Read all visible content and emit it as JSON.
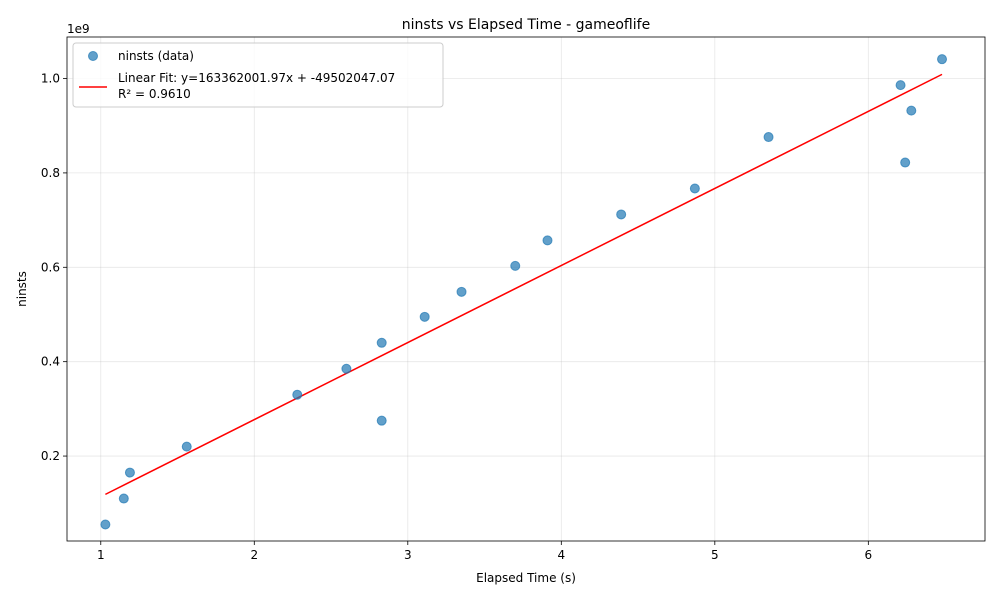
{
  "chart_data": {
    "type": "scatter",
    "title": "ninsts vs Elapsed Time - gameoflife",
    "xlabel": "Elapsed Time (s)",
    "ylabel": "ninsts",
    "y_offset_label": "1e9",
    "xlim": [
      0.78,
      6.76
    ],
    "ylim": [
      0.02,
      1.088
    ],
    "x_ticks": [
      1,
      2,
      3,
      4,
      5,
      6
    ],
    "x_tick_labels": [
      "1",
      "2",
      "3",
      "4",
      "5",
      "6"
    ],
    "y_ticks": [
      0.2,
      0.4,
      0.6,
      0.8,
      1.0
    ],
    "y_tick_labels": [
      "0.2",
      "0.4",
      "0.6",
      "0.8",
      "1.0"
    ],
    "grid": true,
    "legend_position": "top-left",
    "series": [
      {
        "name": "ninsts (data)",
        "kind": "scatter",
        "color": "#1f77b4",
        "points": [
          {
            "x": 1.03,
            "y": 0.055
          },
          {
            "x": 1.15,
            "y": 0.11
          },
          {
            "x": 1.19,
            "y": 0.165
          },
          {
            "x": 1.56,
            "y": 0.22
          },
          {
            "x": 2.28,
            "y": 0.33
          },
          {
            "x": 2.6,
            "y": 0.385
          },
          {
            "x": 2.83,
            "y": 0.44
          },
          {
            "x": 2.83,
            "y": 0.275
          },
          {
            "x": 3.11,
            "y": 0.495
          },
          {
            "x": 3.35,
            "y": 0.548
          },
          {
            "x": 3.7,
            "y": 0.603
          },
          {
            "x": 3.91,
            "y": 0.657
          },
          {
            "x": 4.39,
            "y": 0.712
          },
          {
            "x": 4.87,
            "y": 0.767
          },
          {
            "x": 5.35,
            "y": 0.876
          },
          {
            "x": 6.21,
            "y": 0.986
          },
          {
            "x": 6.24,
            "y": 0.822
          },
          {
            "x": 6.28,
            "y": 0.932
          },
          {
            "x": 6.48,
            "y": 1.041
          }
        ]
      },
      {
        "name": "Linear Fit: y=163362001.97x + -49502047.07",
        "name_line2": "R² = 0.9610",
        "kind": "line",
        "color": "#ff0000",
        "x": [
          1.03,
          6.48
        ],
        "y": [
          0.1188,
          1.0088
        ]
      }
    ]
  }
}
